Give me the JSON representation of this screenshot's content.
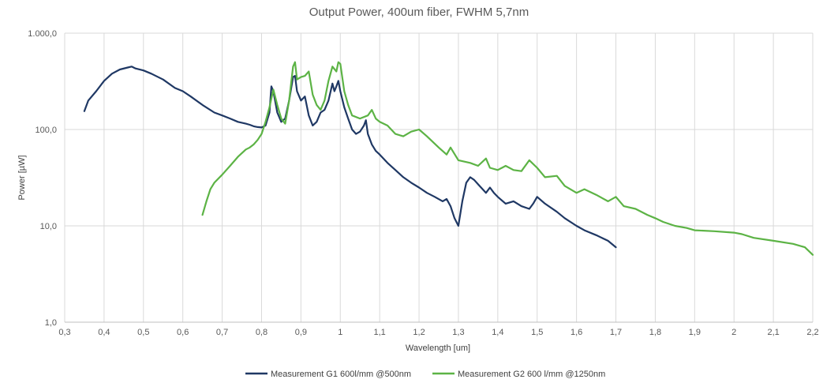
{
  "chart_data": {
    "type": "line",
    "title": "Output Power, 400um fiber, FWHM 5,7nm",
    "xlabel": "Wavelength [um]",
    "ylabel": "Power [µW]",
    "xlim": [
      0.3,
      2.2
    ],
    "ylim": [
      1,
      1000
    ],
    "y_scale": "log",
    "grid": true,
    "legend_position": "bottom",
    "x_ticks": [
      "0,3",
      "0,4",
      "0,5",
      "0,6",
      "0,7",
      "0,8",
      "0,9",
      "1",
      "1,1",
      "1,2",
      "1,3",
      "1,4",
      "1,5",
      "1,6",
      "1,7",
      "1,8",
      "1,9",
      "2",
      "2,1",
      "2,2"
    ],
    "y_ticks": [
      "1,0",
      "10,0",
      "100,0",
      "1.000,0"
    ],
    "series": [
      {
        "name": "Measurement G1 600l/mm @500nm",
        "color": "#1f3864",
        "x": [
          0.35,
          0.36,
          0.38,
          0.4,
          0.42,
          0.44,
          0.46,
          0.47,
          0.48,
          0.5,
          0.52,
          0.55,
          0.58,
          0.6,
          0.62,
          0.65,
          0.68,
          0.7,
          0.72,
          0.74,
          0.76,
          0.77,
          0.78,
          0.79,
          0.8,
          0.81,
          0.82,
          0.825,
          0.83,
          0.84,
          0.85,
          0.86,
          0.87,
          0.88,
          0.885,
          0.89,
          0.9,
          0.91,
          0.92,
          0.93,
          0.94,
          0.95,
          0.96,
          0.97,
          0.98,
          0.985,
          0.99,
          0.995,
          1.0,
          1.01,
          1.02,
          1.03,
          1.04,
          1.05,
          1.06,
          1.065,
          1.07,
          1.08,
          1.09,
          1.1,
          1.12,
          1.14,
          1.16,
          1.18,
          1.2,
          1.22,
          1.24,
          1.26,
          1.27,
          1.28,
          1.29,
          1.3,
          1.31,
          1.32,
          1.33,
          1.34,
          1.35,
          1.37,
          1.38,
          1.39,
          1.4,
          1.42,
          1.44,
          1.46,
          1.48,
          1.49,
          1.5,
          1.52,
          1.55,
          1.57,
          1.6,
          1.62,
          1.65,
          1.68,
          1.7
        ],
        "y": [
          155,
          200,
          250,
          320,
          380,
          420,
          440,
          450,
          430,
          410,
          380,
          330,
          270,
          250,
          220,
          180,
          150,
          140,
          130,
          120,
          115,
          112,
          108,
          106,
          105,
          110,
          150,
          280,
          250,
          150,
          120,
          130,
          200,
          350,
          360,
          250,
          200,
          220,
          140,
          110,
          120,
          150,
          160,
          200,
          300,
          250,
          280,
          320,
          250,
          170,
          130,
          100,
          90,
          95,
          110,
          125,
          90,
          70,
          60,
          55,
          45,
          38,
          32,
          28,
          25,
          22,
          20,
          18,
          19,
          16,
          12,
          10,
          18,
          28,
          32,
          30,
          27,
          22,
          25,
          22,
          20,
          17,
          18,
          16,
          15,
          17,
          20,
          17,
          14,
          12,
          10,
          9,
          8,
          7,
          6
        ]
      },
      {
        "name": "Measurement G2 600 l/mm @1250nm",
        "color": "#5cb345",
        "x": [
          0.65,
          0.66,
          0.67,
          0.68,
          0.7,
          0.72,
          0.74,
          0.76,
          0.77,
          0.78,
          0.79,
          0.8,
          0.81,
          0.82,
          0.83,
          0.84,
          0.85,
          0.86,
          0.87,
          0.88,
          0.885,
          0.89,
          0.9,
          0.91,
          0.92,
          0.93,
          0.94,
          0.95,
          0.96,
          0.97,
          0.98,
          0.99,
          0.995,
          1.0,
          1.01,
          1.02,
          1.03,
          1.05,
          1.07,
          1.08,
          1.09,
          1.1,
          1.12,
          1.14,
          1.16,
          1.18,
          1.2,
          1.22,
          1.25,
          1.27,
          1.28,
          1.3,
          1.33,
          1.35,
          1.37,
          1.38,
          1.4,
          1.42,
          1.44,
          1.46,
          1.48,
          1.5,
          1.52,
          1.55,
          1.57,
          1.6,
          1.62,
          1.65,
          1.68,
          1.7,
          1.72,
          1.75,
          1.78,
          1.8,
          1.82,
          1.85,
          1.88,
          1.9,
          1.95,
          2.0,
          2.02,
          2.05,
          2.1,
          2.15,
          2.18,
          2.2
        ],
        "y": [
          13,
          18,
          24,
          28,
          34,
          42,
          52,
          62,
          65,
          70,
          78,
          90,
          120,
          170,
          260,
          180,
          130,
          115,
          200,
          450,
          500,
          330,
          350,
          360,
          400,
          230,
          180,
          160,
          200,
          320,
          450,
          400,
          500,
          480,
          250,
          180,
          140,
          130,
          140,
          160,
          130,
          120,
          110,
          90,
          85,
          95,
          100,
          85,
          65,
          55,
          65,
          48,
          45,
          42,
          50,
          40,
          38,
          42,
          38,
          37,
          48,
          40,
          32,
          33,
          26,
          22,
          24,
          21,
          18,
          20,
          16,
          15,
          13,
          12,
          11,
          10,
          9.5,
          9.0,
          8.8,
          8.5,
          8.2,
          7.5,
          7.0,
          6.5,
          6.0,
          5.0
        ]
      }
    ]
  }
}
